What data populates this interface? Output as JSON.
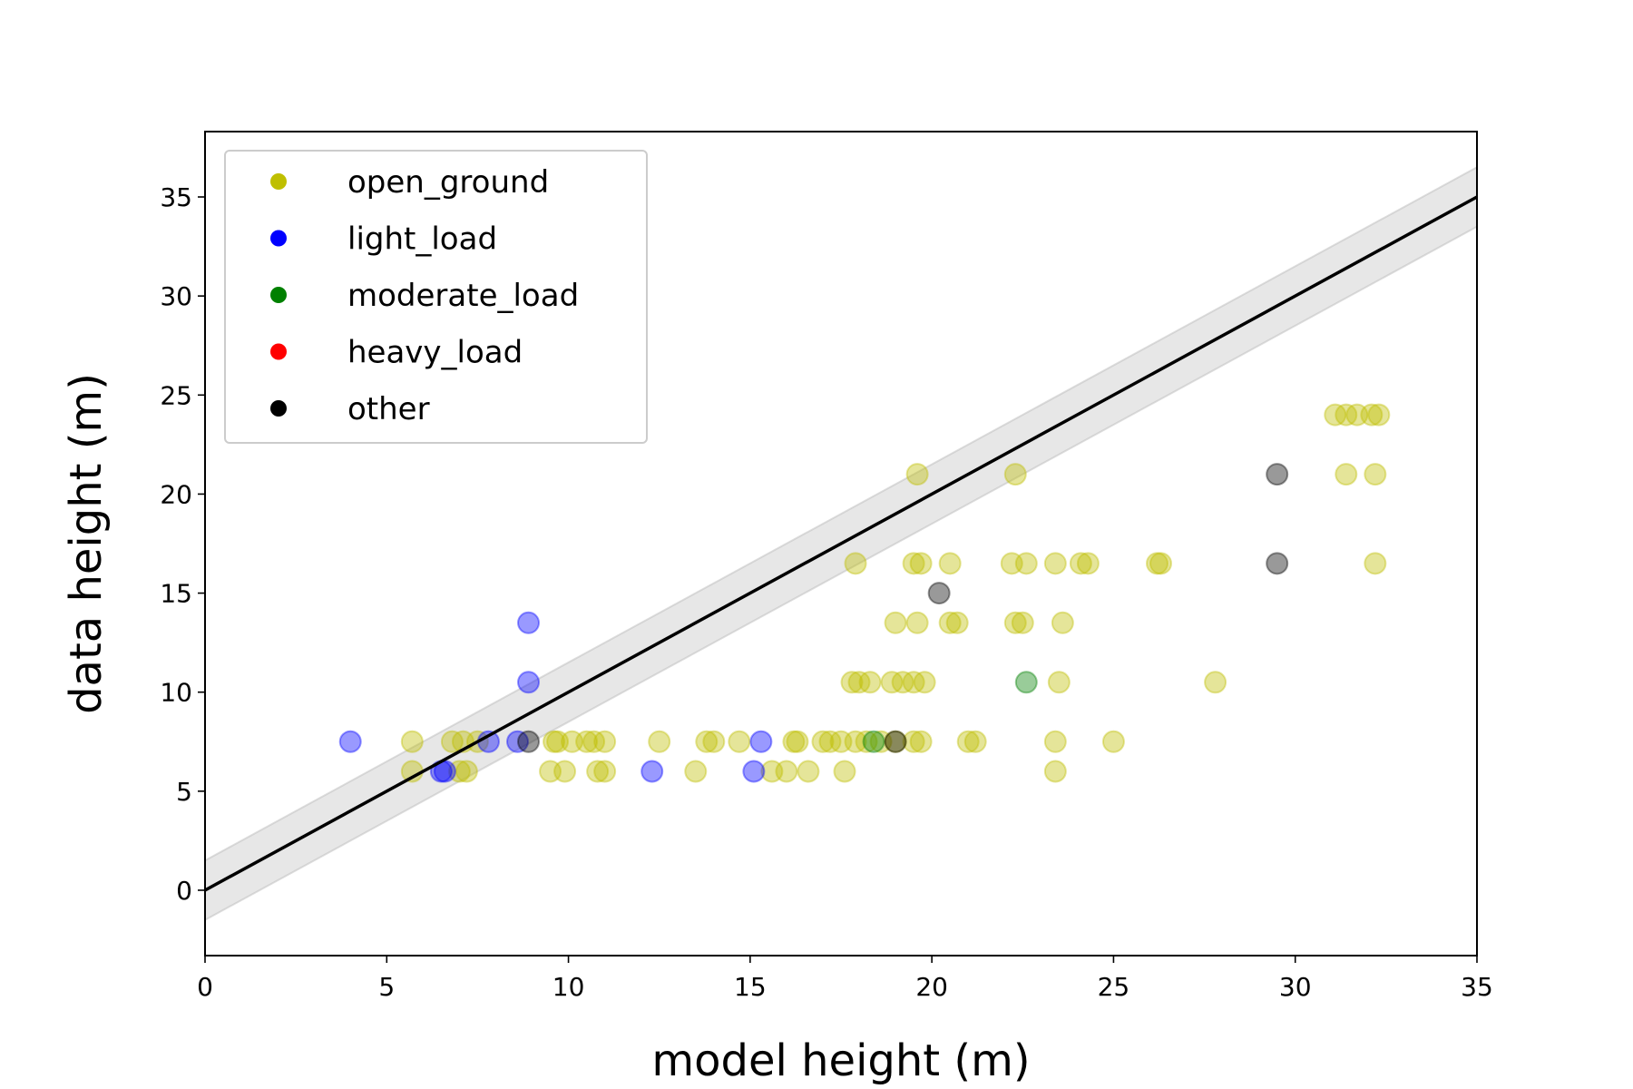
{
  "chart_data": {
    "type": "scatter",
    "xlabel": "model height (m)",
    "ylabel": "data height (m)",
    "xlim": [
      0,
      35
    ],
    "ylim": [
      -3.3,
      38.3
    ],
    "xticks": [
      0,
      5,
      10,
      15,
      20,
      25,
      30,
      35
    ],
    "yticks": [
      0,
      5,
      10,
      15,
      20,
      25,
      30,
      35
    ],
    "grid": false,
    "legend_position": "top-left",
    "reference_line": {
      "x": [
        0,
        35
      ],
      "y": [
        0,
        35
      ],
      "color": "#000000",
      "band": 1.5,
      "band_color": "#bbbbbb"
    },
    "series": [
      {
        "name": "open_ground",
        "color": "#bfbf00",
        "points": [
          [
            5.7,
            7.5
          ],
          [
            5.7,
            6.0
          ],
          [
            6.8,
            7.5
          ],
          [
            7.1,
            7.5
          ],
          [
            7.0,
            6.0
          ],
          [
            7.2,
            6.0
          ],
          [
            7.5,
            7.5
          ],
          [
            9.5,
            6.0
          ],
          [
            9.9,
            6.0
          ],
          [
            9.6,
            7.5
          ],
          [
            9.7,
            7.5
          ],
          [
            10.1,
            7.5
          ],
          [
            10.5,
            7.5
          ],
          [
            10.7,
            7.5
          ],
          [
            11.0,
            7.5
          ],
          [
            10.8,
            6.0
          ],
          [
            11.0,
            6.0
          ],
          [
            12.5,
            7.5
          ],
          [
            13.5,
            6.0
          ],
          [
            13.8,
            7.5
          ],
          [
            14.0,
            7.5
          ],
          [
            14.7,
            7.5
          ],
          [
            15.6,
            6.0
          ],
          [
            16.0,
            6.0
          ],
          [
            16.2,
            7.5
          ],
          [
            16.3,
            7.5
          ],
          [
            16.6,
            6.0
          ],
          [
            17.0,
            7.5
          ],
          [
            17.2,
            7.5
          ],
          [
            17.5,
            7.5
          ],
          [
            17.6,
            6.0
          ],
          [
            17.9,
            7.5
          ],
          [
            18.2,
            7.5
          ],
          [
            18.6,
            7.5
          ],
          [
            19.0,
            7.5
          ],
          [
            19.5,
            7.5
          ],
          [
            19.7,
            7.5
          ],
          [
            21.0,
            7.5
          ],
          [
            21.2,
            7.5
          ],
          [
            23.4,
            7.5
          ],
          [
            25.0,
            7.5
          ],
          [
            23.4,
            6.0
          ],
          [
            17.8,
            10.5
          ],
          [
            18.0,
            10.5
          ],
          [
            18.3,
            10.5
          ],
          [
            18.9,
            10.5
          ],
          [
            19.2,
            10.5
          ],
          [
            19.5,
            10.5
          ],
          [
            19.8,
            10.5
          ],
          [
            23.5,
            10.5
          ],
          [
            27.8,
            10.5
          ],
          [
            19.0,
            13.5
          ],
          [
            19.6,
            13.5
          ],
          [
            20.5,
            13.5
          ],
          [
            20.7,
            13.5
          ],
          [
            22.3,
            13.5
          ],
          [
            22.5,
            13.5
          ],
          [
            23.6,
            13.5
          ],
          [
            17.9,
            16.5
          ],
          [
            19.5,
            16.5
          ],
          [
            19.7,
            16.5
          ],
          [
            20.5,
            16.5
          ],
          [
            22.2,
            16.5
          ],
          [
            22.6,
            16.5
          ],
          [
            23.4,
            16.5
          ],
          [
            24.1,
            16.5
          ],
          [
            24.3,
            16.5
          ],
          [
            26.2,
            16.5
          ],
          [
            26.3,
            16.5
          ],
          [
            32.2,
            16.5
          ],
          [
            19.6,
            21.0
          ],
          [
            22.3,
            21.0
          ],
          [
            31.1,
            24.0
          ],
          [
            31.4,
            24.0
          ],
          [
            31.7,
            24.0
          ],
          [
            32.1,
            24.0
          ],
          [
            32.3,
            24.0
          ],
          [
            31.4,
            21.0
          ],
          [
            32.2,
            21.0
          ]
        ]
      },
      {
        "name": "light_load",
        "color": "#0000ff",
        "points": [
          [
            4.0,
            7.5
          ],
          [
            6.5,
            6.0
          ],
          [
            6.6,
            6.0
          ],
          [
            7.8,
            7.5
          ],
          [
            8.6,
            7.5
          ],
          [
            8.9,
            13.5
          ],
          [
            8.9,
            10.5
          ],
          [
            12.3,
            6.0
          ],
          [
            15.1,
            6.0
          ],
          [
            15.3,
            7.5
          ]
        ]
      },
      {
        "name": "moderate_load",
        "color": "#008000",
        "points": [
          [
            18.4,
            7.5
          ],
          [
            22.6,
            10.5
          ]
        ]
      },
      {
        "name": "heavy_load",
        "color": "#ff0000",
        "points": []
      },
      {
        "name": "other",
        "color": "#000000",
        "points": [
          [
            8.9,
            7.5
          ],
          [
            19.0,
            7.5
          ],
          [
            20.2,
            15.0
          ],
          [
            29.5,
            21.0
          ],
          [
            29.5,
            16.5
          ]
        ]
      }
    ]
  }
}
